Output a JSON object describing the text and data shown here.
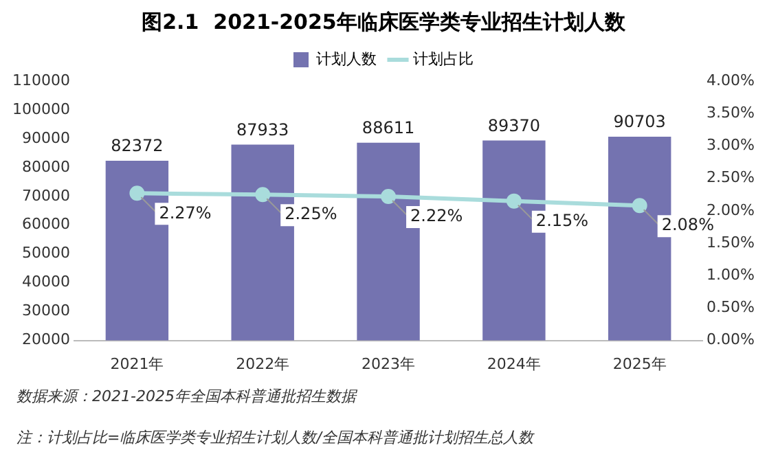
{
  "chart_data": {
    "type": "bar",
    "title": "图2.1  2021-2025年临床医学类专业招生计划人数",
    "categories": [
      "2021年",
      "2022年",
      "2023年",
      "2024年",
      "2025年"
    ],
    "series": [
      {
        "name": "计划人数",
        "color": "#7473b0",
        "values": [
          82372,
          87933,
          88611,
          89370,
          90703
        ]
      },
      {
        "name": "计划占比",
        "type": "line",
        "axis": "y2",
        "color": "#a9dcdc",
        "values": [
          2.27,
          2.25,
          2.22,
          2.15,
          2.08
        ],
        "value_labels": [
          "2.27%",
          "2.25%",
          "2.22%",
          "2.15%",
          "2.08%"
        ]
      }
    ],
    "ylim": [
      20000,
      110000
    ],
    "yticks": [
      20000,
      30000,
      40000,
      50000,
      60000,
      70000,
      80000,
      90000,
      100000,
      110000
    ],
    "y2lim": [
      0,
      4
    ],
    "y2ticks": [
      {
        "value": 0,
        "label": "0.00%"
      },
      {
        "value": 0.5,
        "label": "0.50%"
      },
      {
        "value": 1,
        "label": "1.00%"
      },
      {
        "value": 1.5,
        "label": "1.50%"
      },
      {
        "value": 2,
        "label": "2.00%"
      },
      {
        "value": 2.5,
        "label": "2.50%"
      },
      {
        "value": 3,
        "label": "3.00%"
      },
      {
        "value": 3.5,
        "label": "3.50%"
      },
      {
        "value": 4,
        "label": "4.00%"
      }
    ],
    "data_labels": true,
    "grid": false,
    "legend": "top",
    "marker": "circle",
    "annotations": [
      "数据来源：2021-2025年全国本科普通批招生数据",
      "注：计划占比=临床医学类专业招生计划人数/全国本科普通批计划招生总人数"
    ]
  }
}
